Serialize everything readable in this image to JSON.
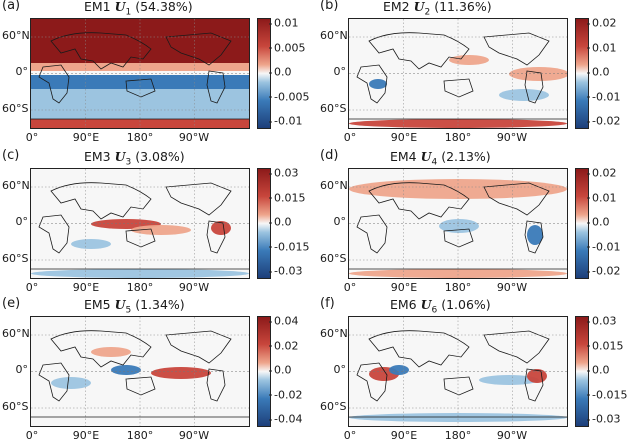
{
  "panels": [
    {
      "letter": "(a)",
      "em": "EM1",
      "sym": "U",
      "sub": "1",
      "pct": "(54.38%)",
      "ticks": [
        "0.01",
        "0.005",
        "0.0",
        "-0.005",
        "-0.01"
      ]
    },
    {
      "letter": "(b)",
      "em": "EM2",
      "sym": "U",
      "sub": "2",
      "pct": "(11.36%)",
      "ticks": [
        "0.02",
        "0.01",
        "0.0",
        "-0.01",
        "-0.02"
      ]
    },
    {
      "letter": "(c)",
      "em": "EM3",
      "sym": "U",
      "sub": "3",
      "pct": "(3.08%)",
      "ticks": [
        "0.03",
        "0.015",
        "0.0",
        "-0.015",
        "-0.03"
      ]
    },
    {
      "letter": "(d)",
      "em": "EM4",
      "sym": "U",
      "sub": "4",
      "pct": "(2.13%)",
      "ticks": [
        "0.02",
        "0.01",
        "0.0",
        "-0.01",
        "-0.02"
      ]
    },
    {
      "letter": "(e)",
      "em": "EM5",
      "sym": "U",
      "sub": "5",
      "pct": "(1.34%)",
      "ticks": [
        "0.04",
        "0.02",
        "0.0",
        "-0.02",
        "-0.04"
      ]
    },
    {
      "letter": "(f)",
      "em": "EM6",
      "sym": "U",
      "sub": "6",
      "pct": "(1.06%)",
      "ticks": [
        "0.03",
        "0.015",
        "0.0",
        "-0.015",
        "-0.03"
      ]
    }
  ],
  "lat_labels": [
    "60°N",
    "0°",
    "60°S"
  ],
  "lon_labels": [
    "0°",
    "90°E",
    "180°",
    "90°W"
  ],
  "colors": {
    "dark_red": "#8c1a1a",
    "red": "#c8463c",
    "light_red": "#eea58c",
    "white": "#f7f7f7",
    "light_blue": "#9cc4e0",
    "blue": "#3a7ab8",
    "dark_blue": "#1d3f7a",
    "land": "#1a1a1a"
  }
}
